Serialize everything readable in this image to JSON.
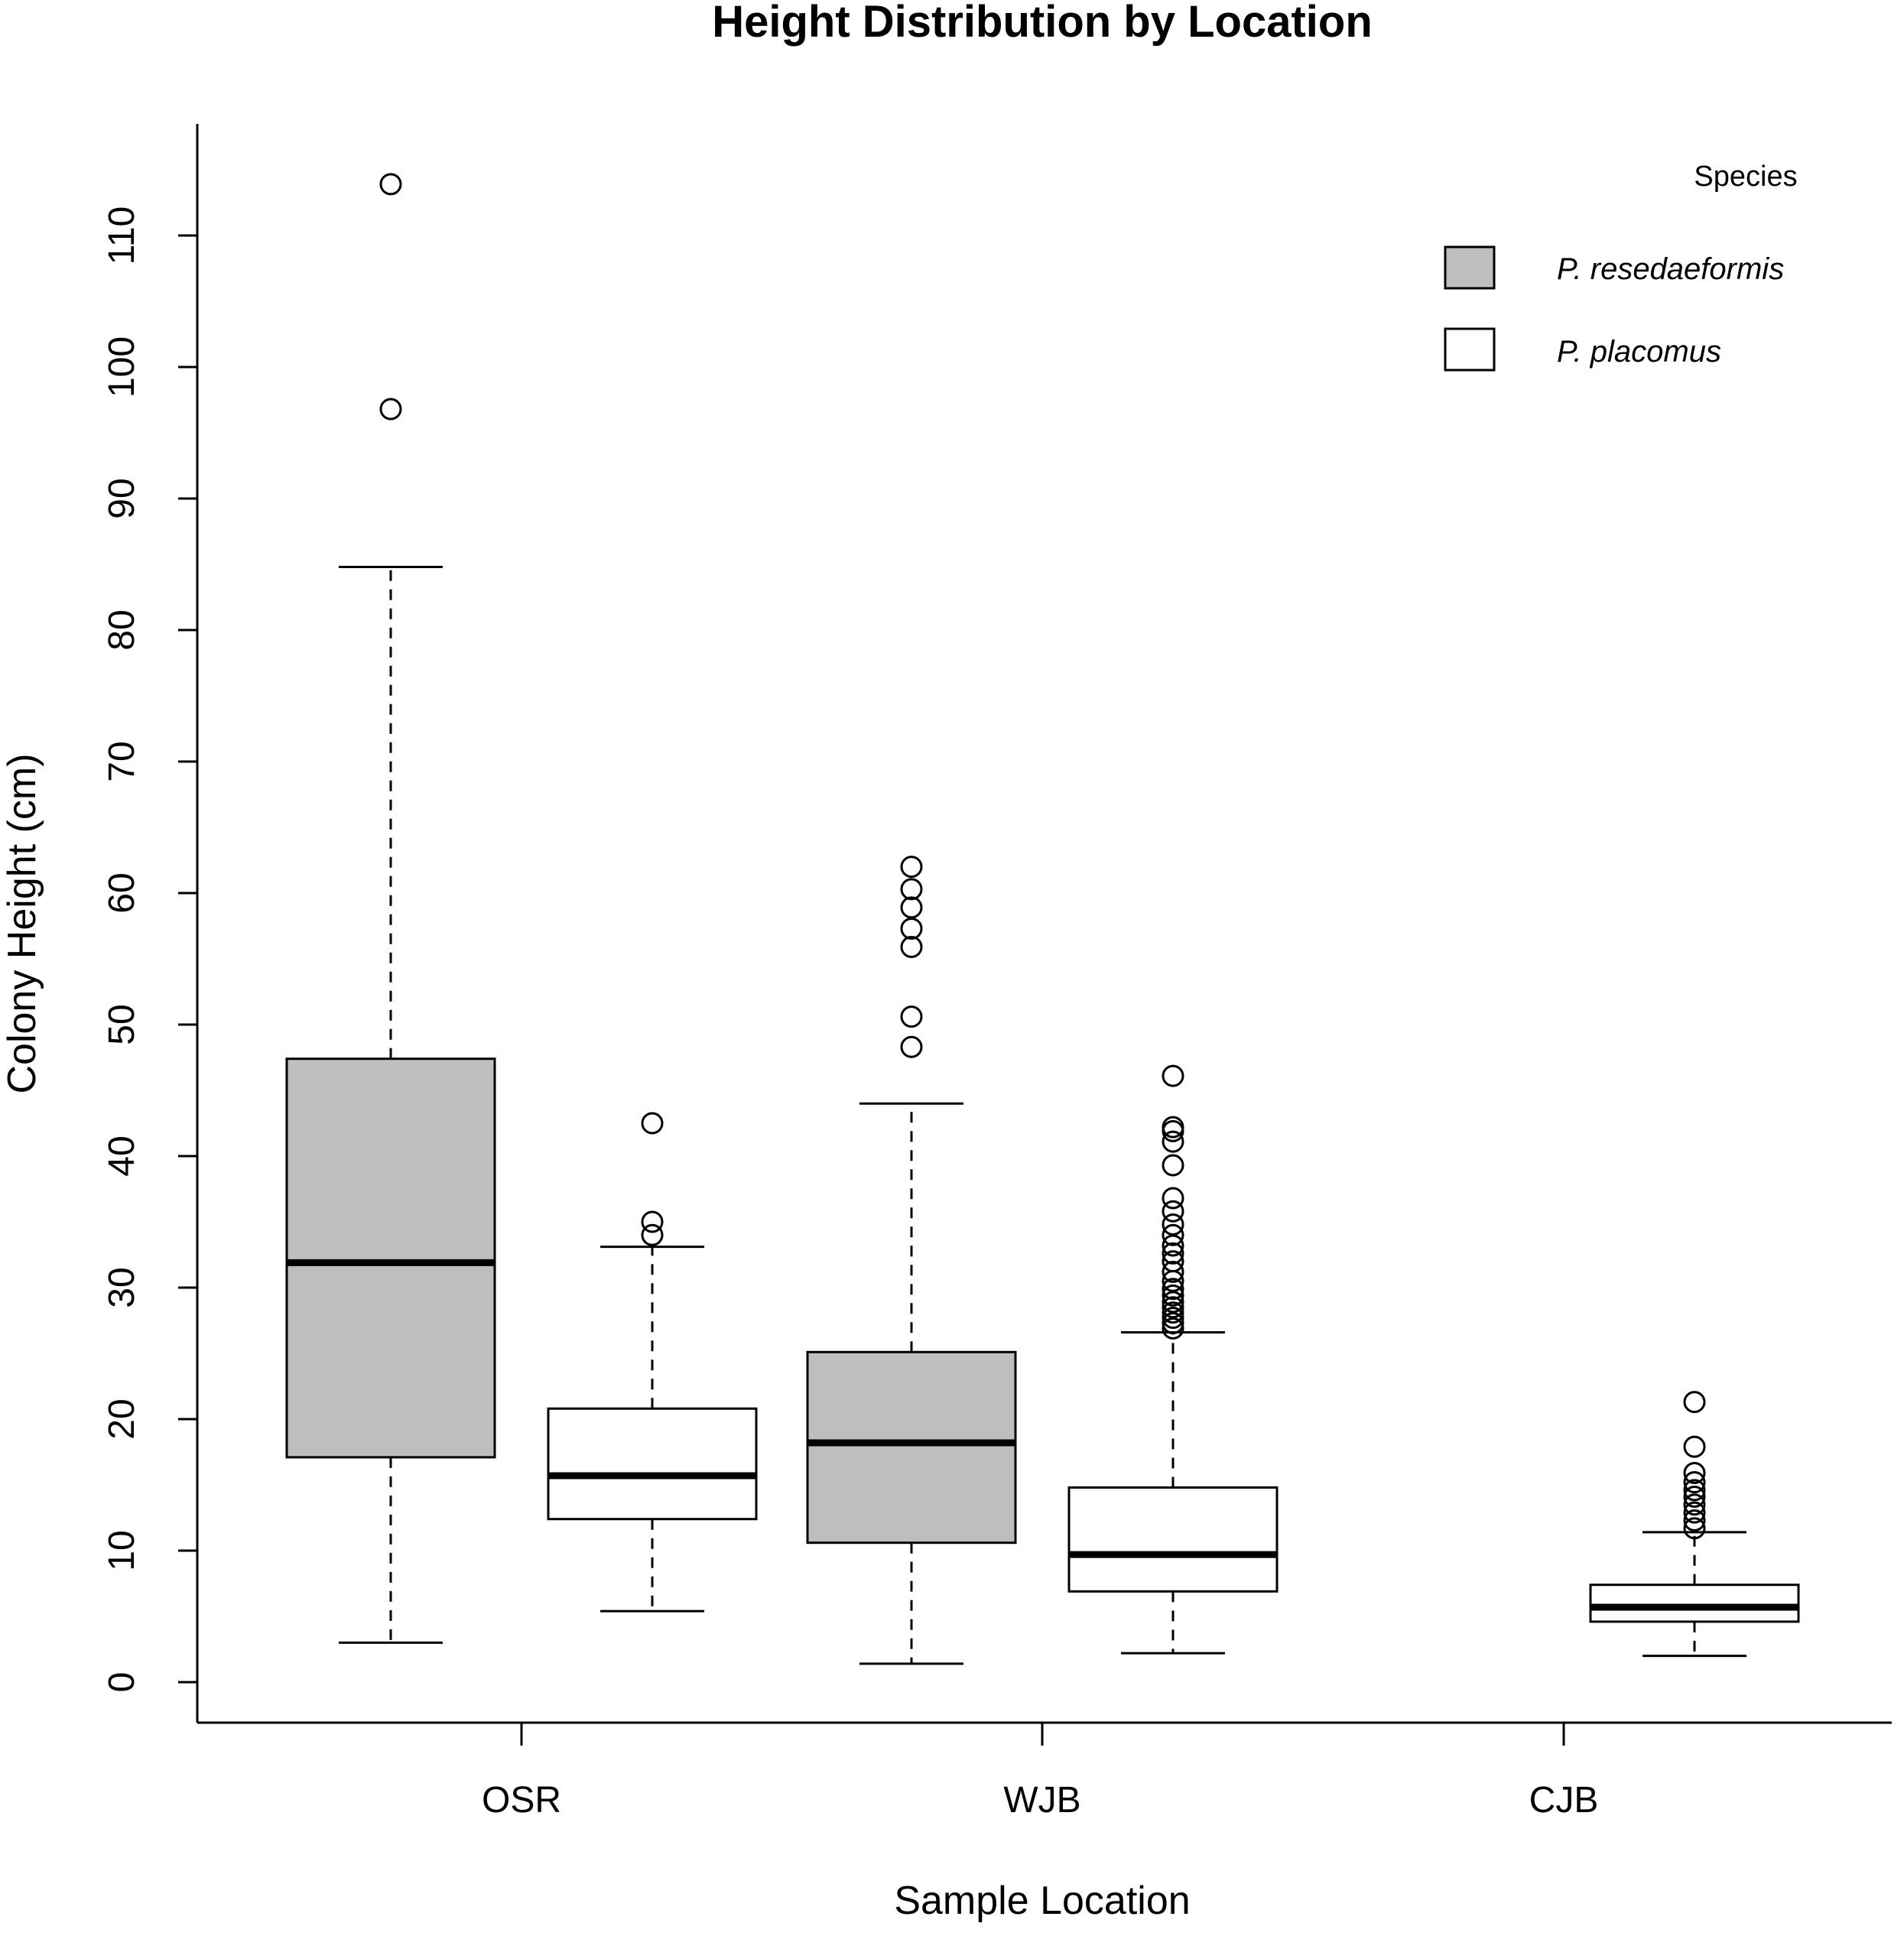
{
  "chart_data": {
    "type": "boxplot",
    "title": "Height Distribution by Location",
    "xlabel": "Sample Location",
    "ylabel": "Colony Height (cm)",
    "ylim": [
      -6,
      118
    ],
    "yticks": [
      0,
      10,
      20,
      30,
      40,
      50,
      60,
      70,
      80,
      90,
      100,
      110
    ],
    "categories": [
      "OSR",
      "WJB",
      "CJB"
    ],
    "legend": {
      "title": "Species",
      "position": "top-right",
      "entries": [
        {
          "name": "P. resedaeformis",
          "color": "#bebebe"
        },
        {
          "name": "P. placomus",
          "color": "#ffffff"
        }
      ]
    },
    "boxes": [
      {
        "category": "OSR",
        "species": "P. resedaeformis",
        "min": 3.0,
        "q1": 17.1,
        "median": 31.9,
        "q3": 47.4,
        "max": 84.8,
        "outliers": [
          96.8,
          113.9
        ]
      },
      {
        "category": "OSR",
        "species": "P. placomus",
        "min": 5.4,
        "q1": 12.4,
        "median": 15.7,
        "q3": 20.8,
        "max": 33.1,
        "outliers": [
          34.0,
          35.0,
          42.5
        ]
      },
      {
        "category": "WJB",
        "species": "P. resedaeformis",
        "min": 1.4,
        "q1": 10.6,
        "median": 18.2,
        "q3": 25.1,
        "max": 44.0,
        "outliers": [
          48.3,
          50.6,
          55.9,
          57.3,
          58.9,
          60.3,
          62.0
        ]
      },
      {
        "category": "WJB",
        "species": "P. placomus",
        "min": 2.2,
        "q1": 6.9,
        "median": 9.7,
        "q3": 14.8,
        "max": 26.6,
        "outliers": [
          26.9,
          27.3,
          27.7,
          28.1,
          28.5,
          28.9,
          29.4,
          29.9,
          30.5,
          31.2,
          32.0,
          32.6,
          33.2,
          34.0,
          34.8,
          35.8,
          36.8,
          39.3,
          41.1,
          41.9,
          42.2,
          46.1
        ]
      },
      {
        "category": "CJB",
        "species": "P. placomus",
        "min": 2.0,
        "q1": 4.6,
        "median": 5.7,
        "q3": 7.4,
        "max": 11.4,
        "outliers": [
          11.7,
          12.3,
          12.9,
          13.5,
          14.1,
          14.6,
          15.2,
          15.9,
          17.9,
          21.3
        ]
      }
    ]
  }
}
